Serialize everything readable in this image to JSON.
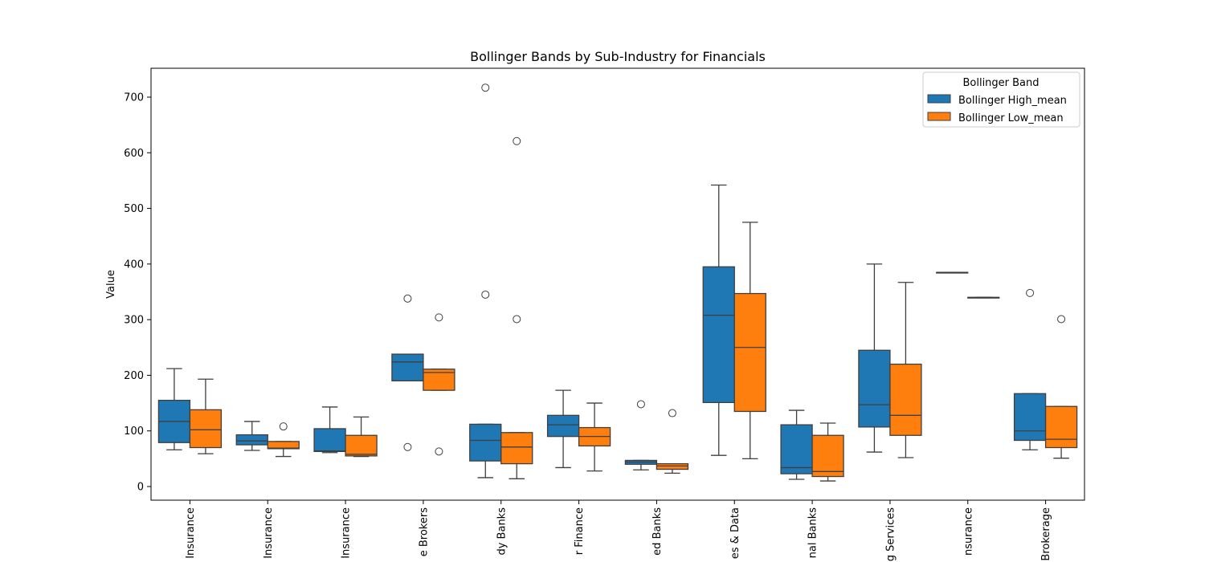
{
  "chart_data": {
    "type": "box",
    "title": "Bollinger Bands by Sub-Industry for Financials",
    "xlabel": "",
    "ylabel": "Value",
    "ylim": [
      -25,
      760
    ],
    "yticks": [
      0,
      100,
      200,
      300,
      400,
      500,
      600,
      700
    ],
    "grid": false,
    "legend": {
      "title": "Bollinger Band",
      "placement": "top-right"
    },
    "colors": {
      "Bollinger High_mean": "#1f77b4",
      "Bollinger Low_mean": "#ff7f0e"
    },
    "categories": [
      "Insurance",
      "Insurance",
      "Insurance",
      "e Brokers",
      "dy Banks",
      "r Finance",
      "ed Banks",
      "es & Data",
      "nal Banks",
      "g Services",
      "nsurance",
      "Brokerage"
    ],
    "series": [
      {
        "name": "Bollinger High_mean",
        "boxes": [
          {
            "whislo": 66,
            "q1": 79,
            "med": 117,
            "q3": 155,
            "whishi": 212,
            "fliers": []
          },
          {
            "whislo": 65,
            "q1": 75,
            "med": 82,
            "q3": 93,
            "whishi": 117,
            "fliers": []
          },
          {
            "whislo": 61,
            "q1": 63,
            "med": 64,
            "q3": 104,
            "whishi": 143,
            "fliers": []
          },
          {
            "whislo": 190,
            "q1": 190,
            "med": 224,
            "q3": 238,
            "whishi": 238,
            "fliers": [
              338,
              71
            ]
          },
          {
            "whislo": 16,
            "q1": 46,
            "med": 83,
            "q3": 112,
            "whishi": 112,
            "fliers": [
              717,
              345
            ]
          },
          {
            "whislo": 34,
            "q1": 90,
            "med": 111,
            "q3": 128,
            "whishi": 173,
            "fliers": []
          },
          {
            "whislo": 30,
            "q1": 40,
            "med": 44,
            "q3": 47,
            "whishi": 47,
            "fliers": [
              148
            ]
          },
          {
            "whislo": 56,
            "q1": 151,
            "med": 308,
            "q3": 395,
            "whishi": 542,
            "fliers": []
          },
          {
            "whislo": 13,
            "q1": 23,
            "med": 34,
            "q3": 111,
            "whishi": 137,
            "fliers": []
          },
          {
            "whislo": 62,
            "q1": 107,
            "med": 147,
            "q3": 245,
            "whishi": 400,
            "fliers": []
          },
          {
            "whislo": 385,
            "q1": 385,
            "med": 385,
            "q3": 385,
            "whishi": 385,
            "fliers": []
          },
          {
            "whislo": 66,
            "q1": 83,
            "med": 100,
            "q3": 167,
            "whishi": 167,
            "fliers": [
              348
            ]
          }
        ]
      },
      {
        "name": "Bollinger Low_mean",
        "boxes": [
          {
            "whislo": 59,
            "q1": 70,
            "med": 102,
            "q3": 138,
            "whishi": 193,
            "fliers": []
          },
          {
            "whislo": 54,
            "q1": 68,
            "med": 69,
            "q3": 81,
            "whishi": 81,
            "fliers": [
              108
            ]
          },
          {
            "whislo": 54,
            "q1": 55,
            "med": 58,
            "q3": 92,
            "whishi": 125,
            "fliers": []
          },
          {
            "whislo": 173,
            "q1": 173,
            "med": 205,
            "q3": 211,
            "whishi": 211,
            "fliers": [
              304,
              63
            ]
          },
          {
            "whislo": 14,
            "q1": 41,
            "med": 71,
            "q3": 97,
            "whishi": 97,
            "fliers": [
              621,
              301
            ]
          },
          {
            "whislo": 28,
            "q1": 73,
            "med": 90,
            "q3": 106,
            "whishi": 150,
            "fliers": []
          },
          {
            "whislo": 24,
            "q1": 31,
            "med": 37,
            "q3": 41,
            "whishi": 41,
            "fliers": [
              132
            ]
          },
          {
            "whislo": 50,
            "q1": 135,
            "med": 250,
            "q3": 347,
            "whishi": 475,
            "fliers": []
          },
          {
            "whislo": 10,
            "q1": 18,
            "med": 27,
            "q3": 92,
            "whishi": 114,
            "fliers": []
          },
          {
            "whislo": 52,
            "q1": 92,
            "med": 128,
            "q3": 220,
            "whishi": 367,
            "fliers": []
          },
          {
            "whislo": 340,
            "q1": 340,
            "med": 340,
            "q3": 340,
            "whishi": 340,
            "fliers": []
          },
          {
            "whislo": 51,
            "q1": 70,
            "med": 85,
            "q3": 144,
            "whishi": 144,
            "fliers": [
              301
            ]
          }
        ]
      }
    ]
  }
}
